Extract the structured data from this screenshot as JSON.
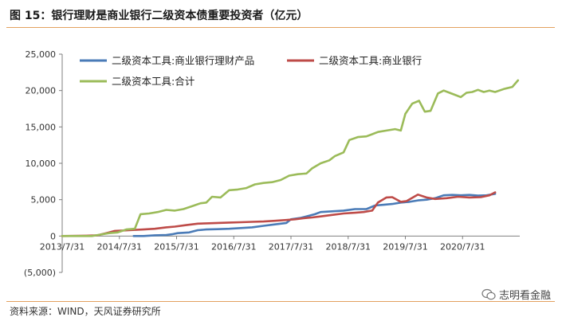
{
  "figure": {
    "title": "图 15：银行理财是商业银行二级资本债重要投资者（亿元）",
    "source": "资料来源：WIND，天风证券研究所",
    "brand": "志明看金融"
  },
  "colors": {
    "blue": "#4a7bb7",
    "red": "#be4b48",
    "green": "#9bbb59",
    "rule": "#e3a15f",
    "axis": "#7f7f7f"
  },
  "chart_data": {
    "type": "line",
    "x_ticks": [
      "2013/7/31",
      "2014/7/31",
      "2015/7/31",
      "2016/7/31",
      "2017/7/31",
      "2018/7/31",
      "2019/7/31",
      "2020/7/31"
    ],
    "y_ticks": [
      "25,000",
      "20,000",
      "15,000",
      "10,000",
      "5,000",
      "0",
      "(5,000)"
    ],
    "ylim": [
      -5000,
      25000
    ],
    "legend_position": "top-left",
    "grid": false,
    "series": [
      {
        "name": "二级资本工具:商业银行理财产品",
        "color": "#4a7bb7",
        "points": [
          [
            2014.83,
            0
          ],
          [
            2015.0,
            0
          ],
          [
            2015.2,
            100
          ],
          [
            2015.4,
            150
          ],
          [
            2015.5,
            250
          ],
          [
            2015.6,
            400
          ],
          [
            2015.8,
            500
          ],
          [
            2015.95,
            800
          ],
          [
            2016.1,
            900
          ],
          [
            2016.3,
            950
          ],
          [
            2016.5,
            1000
          ],
          [
            2016.7,
            1100
          ],
          [
            2016.9,
            1200
          ],
          [
            2017.1,
            1400
          ],
          [
            2017.3,
            1600
          ],
          [
            2017.5,
            1800
          ],
          [
            2017.58,
            2300
          ],
          [
            2017.75,
            2500
          ],
          [
            2017.9,
            2800
          ],
          [
            2018.0,
            3000
          ],
          [
            2018.1,
            3300
          ],
          [
            2018.3,
            3400
          ],
          [
            2018.5,
            3500
          ],
          [
            2018.7,
            3700
          ],
          [
            2018.9,
            3700
          ],
          [
            2019.05,
            4200
          ],
          [
            2019.2,
            4300
          ],
          [
            2019.35,
            4400
          ],
          [
            2019.5,
            4600
          ],
          [
            2019.65,
            4700
          ],
          [
            2019.8,
            4900
          ],
          [
            2019.95,
            5000
          ],
          [
            2020.1,
            5200
          ],
          [
            2020.25,
            5600
          ],
          [
            2020.4,
            5650
          ],
          [
            2020.55,
            5600
          ],
          [
            2020.7,
            5650
          ],
          [
            2020.85,
            5550
          ],
          [
            2021.0,
            5600
          ],
          [
            2021.15,
            5800
          ]
        ]
      },
      {
        "name": "二级资本工具:商业银行",
        "color": "#be4b48",
        "points": [
          [
            2013.58,
            0
          ],
          [
            2014.0,
            50
          ],
          [
            2014.2,
            100
          ],
          [
            2014.35,
            400
          ],
          [
            2014.5,
            700
          ],
          [
            2014.75,
            800
          ],
          [
            2015.0,
            900
          ],
          [
            2015.2,
            1000
          ],
          [
            2015.4,
            1200
          ],
          [
            2015.55,
            1300
          ],
          [
            2015.75,
            1500
          ],
          [
            2015.95,
            1700
          ],
          [
            2016.1,
            1750
          ],
          [
            2016.3,
            1800
          ],
          [
            2016.5,
            1850
          ],
          [
            2016.7,
            1900
          ],
          [
            2016.9,
            1950
          ],
          [
            2017.1,
            2000
          ],
          [
            2017.3,
            2100
          ],
          [
            2017.5,
            2200
          ],
          [
            2017.65,
            2300
          ],
          [
            2017.8,
            2450
          ],
          [
            2017.95,
            2550
          ],
          [
            2018.1,
            2700
          ],
          [
            2018.3,
            2900
          ],
          [
            2018.5,
            3100
          ],
          [
            2018.7,
            3200
          ],
          [
            2018.85,
            3300
          ],
          [
            2019.0,
            3500
          ],
          [
            2019.1,
            4600
          ],
          [
            2019.25,
            5300
          ],
          [
            2019.35,
            5350
          ],
          [
            2019.5,
            4700
          ],
          [
            2019.6,
            4800
          ],
          [
            2019.8,
            5700
          ],
          [
            2019.95,
            5300
          ],
          [
            2020.1,
            5100
          ],
          [
            2020.3,
            5200
          ],
          [
            2020.5,
            5400
          ],
          [
            2020.7,
            5300
          ],
          [
            2020.9,
            5350
          ],
          [
            2021.05,
            5600
          ],
          [
            2021.15,
            6000
          ]
        ]
      },
      {
        "name": "二级资本工具:合计",
        "color": "#9bbb59",
        "points": [
          [
            2013.58,
            0
          ],
          [
            2014.1,
            0
          ],
          [
            2014.25,
            200
          ],
          [
            2014.4,
            400
          ],
          [
            2014.55,
            500
          ],
          [
            2014.7,
            900
          ],
          [
            2014.85,
            1000
          ],
          [
            2014.95,
            3000
          ],
          [
            2015.1,
            3100
          ],
          [
            2015.25,
            3300
          ],
          [
            2015.4,
            3600
          ],
          [
            2015.55,
            3500
          ],
          [
            2015.7,
            3700
          ],
          [
            2015.85,
            4100
          ],
          [
            2016.0,
            4500
          ],
          [
            2016.1,
            4600
          ],
          [
            2016.2,
            5400
          ],
          [
            2016.35,
            5300
          ],
          [
            2016.5,
            6300
          ],
          [
            2016.65,
            6400
          ],
          [
            2016.8,
            6600
          ],
          [
            2016.95,
            7100
          ],
          [
            2017.1,
            7300
          ],
          [
            2017.25,
            7400
          ],
          [
            2017.4,
            7700
          ],
          [
            2017.55,
            8300
          ],
          [
            2017.7,
            8500
          ],
          [
            2017.85,
            8600
          ],
          [
            2017.95,
            9300
          ],
          [
            2018.1,
            10000
          ],
          [
            2018.25,
            10400
          ],
          [
            2018.35,
            11000
          ],
          [
            2018.5,
            11500
          ],
          [
            2018.6,
            13200
          ],
          [
            2018.75,
            13600
          ],
          [
            2018.9,
            13700
          ],
          [
            2019.0,
            14000
          ],
          [
            2019.1,
            14300
          ],
          [
            2019.25,
            14500
          ],
          [
            2019.4,
            14700
          ],
          [
            2019.5,
            14500
          ],
          [
            2019.58,
            16800
          ],
          [
            2019.7,
            18200
          ],
          [
            2019.82,
            18600
          ],
          [
            2019.92,
            17100
          ],
          [
            2020.02,
            17200
          ],
          [
            2020.15,
            19600
          ],
          [
            2020.25,
            20000
          ],
          [
            2020.35,
            19700
          ],
          [
            2020.45,
            19400
          ],
          [
            2020.55,
            19100
          ],
          [
            2020.65,
            19700
          ],
          [
            2020.75,
            19800
          ],
          [
            2020.85,
            20100
          ],
          [
            2020.95,
            19800
          ],
          [
            2021.05,
            20000
          ],
          [
            2021.15,
            19800
          ],
          [
            2021.3,
            20200
          ],
          [
            2021.45,
            20500
          ],
          [
            2021.55,
            21400
          ]
        ]
      }
    ]
  }
}
